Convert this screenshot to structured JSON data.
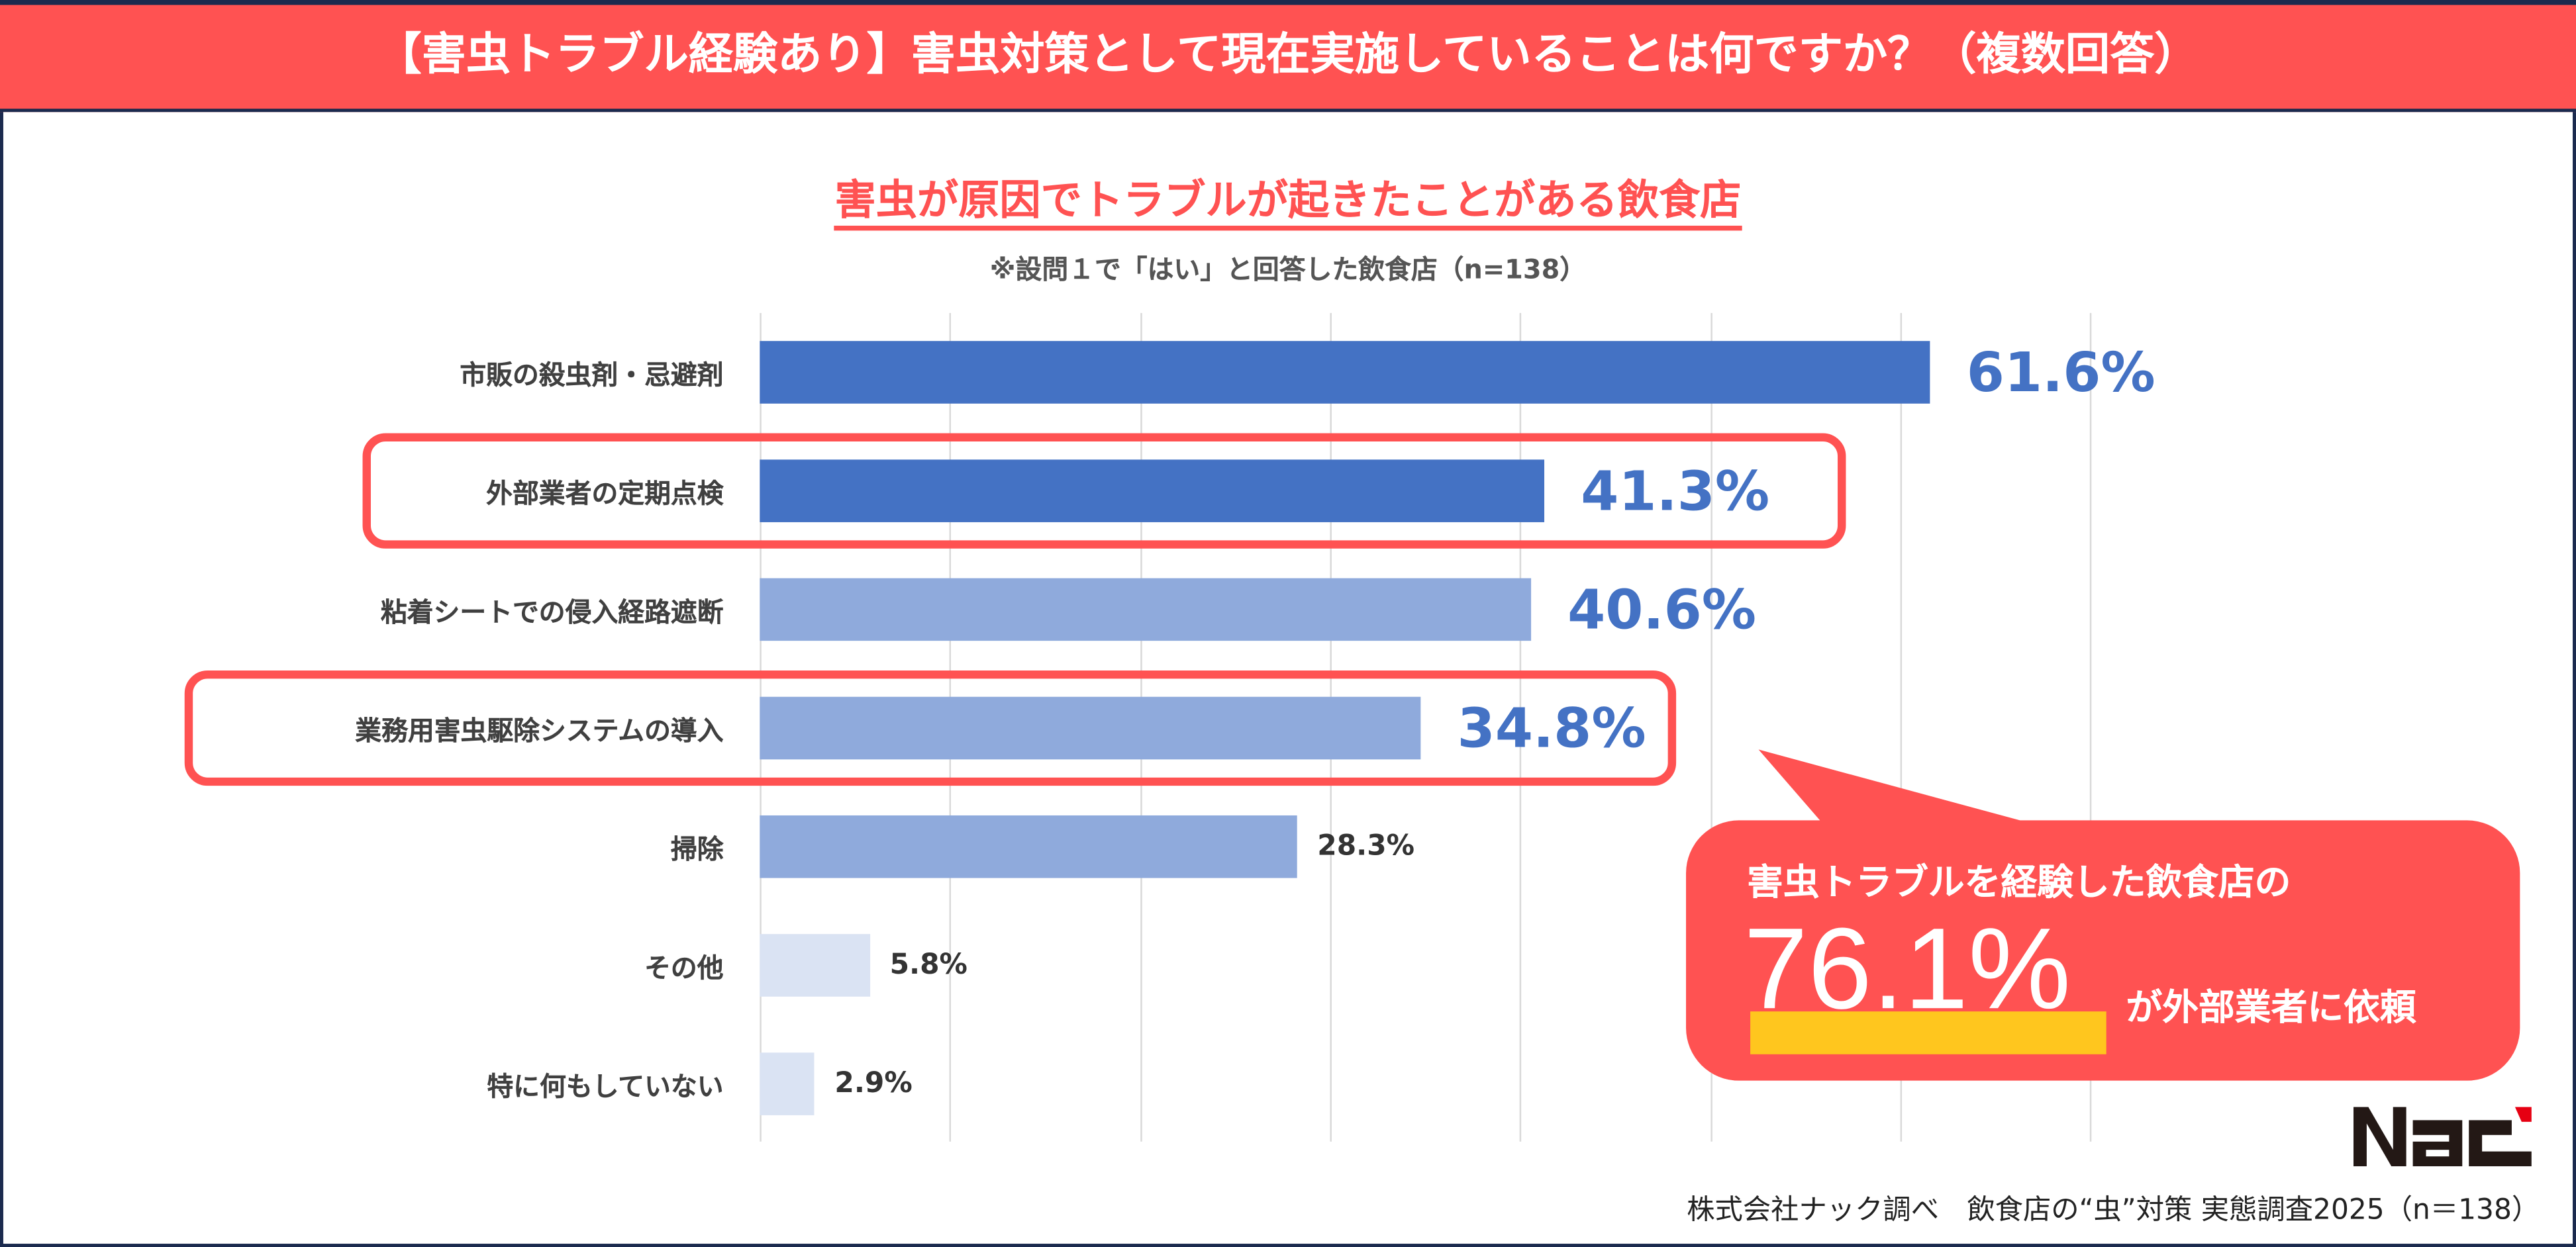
{
  "title": "【害虫トラブル経験あり】害虫対策として現在実施していることは何ですか？（複数回答）",
  "subtitle": "害虫が原因でトラブルが起きたことがある飲食店",
  "note": "※設問１で「はい」と回答した飲食店（n=138）",
  "chart_data": {
    "type": "bar",
    "orientation": "horizontal",
    "categories": [
      "市販の殺虫剤・忌避剤",
      "外部業者の定期点検",
      "粘着シートでの侵入経路遮断",
      "業務用害虫駆除システムの導入",
      "掃除",
      "その他",
      "特に何もしていない"
    ],
    "values": [
      61.6,
      41.3,
      40.6,
      34.8,
      28.3,
      5.8,
      2.9
    ],
    "labels": [
      "61.6%",
      "41.3%",
      "40.6%",
      "34.8%",
      "28.3%",
      "5.8%",
      "2.9%"
    ],
    "xlim": [
      0,
      70
    ],
    "grid_step": 10,
    "grid": true,
    "bar_colors": [
      "#4472c4",
      "#4472c4",
      "#8faadc",
      "#8faadc",
      "#8faadc",
      "#dae3f3",
      "#dae3f3"
    ],
    "highlighted": [
      "外部業者の定期点検",
      "業務用害虫駆除システムの導入"
    ]
  },
  "callout": {
    "line1": "害虫トラブルを経験した飲食店の",
    "value": "76.1%",
    "line2": "が外部業者に依頼"
  },
  "logo": "NAC",
  "footer": "株式会社ナック調べ　飲食店の“虫”対策 実態調査2025（n＝138）",
  "colors": {
    "accent": "#ff5252",
    "bar_dark": "#4472c4",
    "bar_mid": "#8faadc",
    "bar_light": "#dae3f3",
    "highlight_yellow": "#ffc61e",
    "border": "#1b2a4e"
  }
}
